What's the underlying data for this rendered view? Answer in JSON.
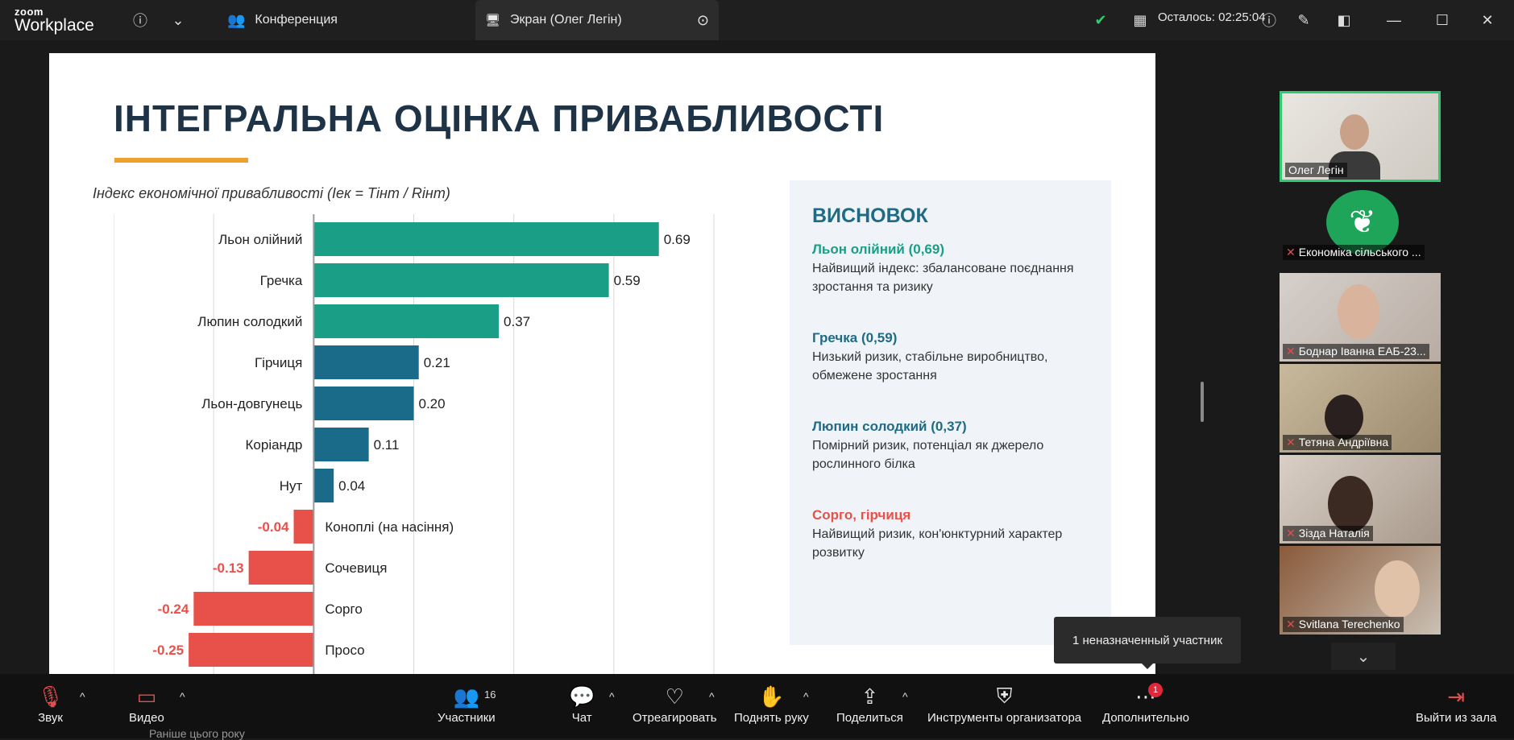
{
  "app": {
    "logo_top": "zoom",
    "logo_bottom": "Workplace",
    "tab_conference": "Конференция",
    "tab_screen": "Экран (Олег Легін)",
    "time_remaining": "Осталось: 02:25:04"
  },
  "slide": {
    "title": "ІНТЕГРАЛЬНА ОЦІНКА ПРИВАБЛИВОСТІ",
    "chart_title": "Індекс економічної привабливості (Іек = Тінт / Rінт)",
    "conclusion": {
      "heading": "ВИСНОВОК",
      "items": [
        {
          "title": "Льон олійний (0,69)",
          "text": "Найвищий індекс: збалансоване поєднання зростання та ризику",
          "color": "#1a9e86"
        },
        {
          "title": "Гречка (0,59)",
          "text": "Низький ризик, стабільне виробництво, обмежене зростання",
          "color": "#1f6b84"
        },
        {
          "title": "Люпин солодкий (0,37)",
          "text": "Помірний ризик, потенціал як джерело рослинного білка",
          "color": "#1f6b84"
        },
        {
          "title": "Сорго, гірчиця",
          "text": "Найвищий ризик, кон'юнктурний характер розвитку",
          "color": "#e8504a"
        }
      ]
    }
  },
  "chart_data": {
    "type": "bar",
    "orientation": "horizontal",
    "categories": [
      "Льон олійний",
      "Гречка",
      "Люпин солодкий",
      "Гірчиця",
      "Льон-довгунець",
      "Коріандр",
      "Нут",
      "Коноплі (на насіння)",
      "Сочевиця",
      "Сорго",
      "Просо"
    ],
    "values": [
      0.69,
      0.59,
      0.37,
      0.21,
      0.2,
      0.11,
      0.04,
      -0.04,
      -0.13,
      -0.24,
      -0.25
    ],
    "value_labels": [
      "0.69",
      "0.59",
      "0.37",
      "0.21",
      "0.20",
      "0.11",
      "0.04",
      "-0.04",
      "-0.13",
      "-0.24",
      "-0.25"
    ],
    "colors": [
      "#1a9e86",
      "#1a9e86",
      "#1a9e86",
      "#1a6b8a",
      "#1a6b8a",
      "#1a6b8a",
      "#1a6b8a",
      "#e8504a",
      "#e8504a",
      "#e8504a",
      "#e8504a"
    ],
    "xlim": [
      -0.4,
      0.8
    ],
    "grid": true
  },
  "participants": {
    "tiles": [
      {
        "name": "Олег Легін",
        "muted": false,
        "speaking": true
      },
      {
        "name": "Економіка сільського ...",
        "muted": true,
        "speaking": false
      },
      {
        "name": "Боднар Іванна ЕАБ-23...",
        "muted": true,
        "speaking": false
      },
      {
        "name": "Тетяна Андріївна",
        "muted": true,
        "speaking": false
      },
      {
        "name": "Зізда Наталія",
        "muted": true,
        "speaking": false
      },
      {
        "name": "Svitlana Terechenko",
        "muted": true,
        "speaking": false
      }
    ]
  },
  "tooltip": "1 неназначенный участник",
  "toolbar": {
    "audio": "Звук",
    "video": "Видео",
    "participants": "Участники",
    "participants_count": "16",
    "chat": "Чат",
    "react": "Отреагировать",
    "raise_hand": "Поднять руку",
    "share": "Поделиться",
    "host_tools": "Инструменты организатора",
    "more": "Дополнительно",
    "more_badge": "1",
    "leave": "Выйти из зала"
  },
  "below_text": "Раніше цього року"
}
